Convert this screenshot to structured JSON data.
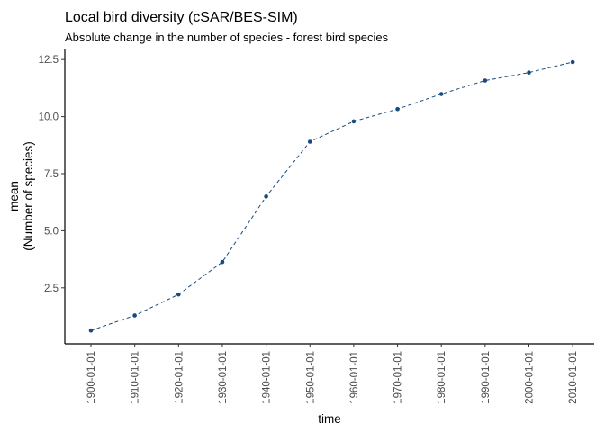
{
  "chart_data": {
    "type": "line",
    "title": "Local bird diversity (cSAR/BES-SIM)",
    "subtitle": "Absolute change in the number of species - forest bird species",
    "xlabel": "time",
    "ylabel": [
      "mean",
      "(Number of species)"
    ],
    "categories": [
      "1900-01-01",
      "1910-01-01",
      "1920-01-01",
      "1930-01-01",
      "1940-01-01",
      "1950-01-01",
      "1960-01-01",
      "1970-01-01",
      "1980-01-01",
      "1990-01-01",
      "2000-01-01",
      "2010-01-01"
    ],
    "values": [
      0.63,
      1.29,
      2.21,
      3.63,
      6.5,
      8.9,
      9.79,
      10.33,
      10.99,
      11.58,
      11.93,
      12.39
    ],
    "yticks": [
      "2.5",
      "5.0",
      "7.5",
      "10.0",
      "12.5"
    ],
    "ylim": [
      0,
      13.1
    ],
    "line_style": "dashed",
    "markers": true,
    "grid": false,
    "color": "#174a7e"
  }
}
